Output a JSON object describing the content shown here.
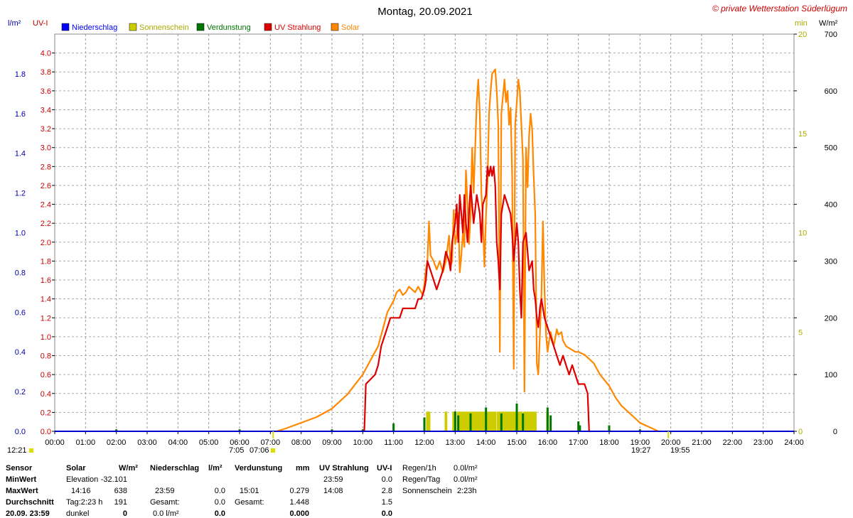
{
  "header": {
    "title": "Montag, 20.09.2021",
    "copyright": "© private Wetterstation Süderlügum",
    "left_units": [
      "l/m²",
      "UV-I"
    ],
    "right_units": [
      "min",
      "W/m²"
    ]
  },
  "legend": [
    {
      "label": "Niederschlag",
      "color": "#0000ff"
    },
    {
      "label": "Sonnenschein",
      "color": "#cccc00"
    },
    {
      "label": "Verdunstung",
      "color": "#007700"
    },
    {
      "label": "UV Strahlung",
      "color": "#dd0000"
    },
    {
      "label": "Solar",
      "color": "#ff8800"
    }
  ],
  "markers": {
    "left_time": "12:21",
    "sunrise": "7:05",
    "sunrise2": "07:06",
    "sunset": "19:27",
    "sunset2": "19:55"
  },
  "chart_data": {
    "type": "line",
    "title": "Montag, 20.09.2021",
    "x_ticks": [
      "00:00",
      "01:00",
      "02:00",
      "03:00",
      "04:00",
      "05:00",
      "06:00",
      "07:00",
      "08:00",
      "09:00",
      "10:00",
      "11:00",
      "12:00",
      "13:00",
      "14:00",
      "15:00",
      "16:00",
      "17:00",
      "18:00",
      "19:00",
      "20:00",
      "21:00",
      "22:00",
      "23:00",
      "24:00"
    ],
    "axes": {
      "rain_lm2": {
        "range": [
          0,
          2.0
        ],
        "ticks": [
          "0.0",
          "0.2",
          "0.4",
          "0.6",
          "0.8",
          "1.0",
          "1.2",
          "1.4",
          "1.6",
          "1.8"
        ],
        "color": "#0000aa",
        "unit": "l/m²"
      },
      "uv_index": {
        "range": [
          0,
          4.2
        ],
        "ticks": [
          "0.0",
          "0.2",
          "0.4",
          "0.6",
          "0.8",
          "1.0",
          "1.2",
          "1.4",
          "1.6",
          "1.8",
          "2.0",
          "2.2",
          "2.4",
          "2.6",
          "2.8",
          "3.0",
          "3.2",
          "3.4",
          "3.6",
          "3.8",
          "4.0"
        ],
        "color": "#cc0000",
        "unit": "UV-I"
      },
      "sun_min": {
        "range": [
          0,
          20
        ],
        "ticks": [
          "0",
          "5",
          "10",
          "15",
          "20"
        ],
        "color": "#aaaa00",
        "unit": "min"
      },
      "solar_wm2": {
        "range": [
          0,
          700
        ],
        "ticks": [
          "0",
          "100",
          "200",
          "300",
          "400",
          "500",
          "600",
          "700"
        ],
        "color": "#000000",
        "unit": "W/m²"
      }
    },
    "grid": true,
    "series": [
      {
        "name": "Solar",
        "axis": "solar_wm2",
        "color": "#ff8800",
        "points": [
          [
            7.2,
            0
          ],
          [
            7.5,
            5
          ],
          [
            8.0,
            15
          ],
          [
            8.5,
            25
          ],
          [
            9.0,
            40
          ],
          [
            9.5,
            65
          ],
          [
            10.0,
            100
          ],
          [
            10.3,
            130
          ],
          [
            10.5,
            150
          ],
          [
            10.7,
            190
          ],
          [
            10.8,
            210
          ],
          [
            11.0,
            230
          ],
          [
            11.1,
            245
          ],
          [
            11.2,
            250
          ],
          [
            11.3,
            240
          ],
          [
            11.4,
            245
          ],
          [
            11.5,
            255
          ],
          [
            11.7,
            245
          ],
          [
            11.8,
            255
          ],
          [
            11.95,
            240
          ],
          [
            12.0,
            260
          ],
          [
            12.05,
            285
          ],
          [
            12.1,
            300
          ],
          [
            12.15,
            370
          ],
          [
            12.2,
            310
          ],
          [
            12.3,
            300
          ],
          [
            12.4,
            285
          ],
          [
            12.5,
            300
          ],
          [
            12.6,
            280
          ],
          [
            12.7,
            300
          ],
          [
            12.8,
            345
          ],
          [
            12.85,
            290
          ],
          [
            12.9,
            300
          ],
          [
            12.95,
            390
          ],
          [
            13.0,
            330
          ],
          [
            13.05,
            345
          ],
          [
            13.1,
            385
          ],
          [
            13.15,
            280
          ],
          [
            13.2,
            310
          ],
          [
            13.25,
            350
          ],
          [
            13.3,
            325
          ],
          [
            13.35,
            460
          ],
          [
            13.4,
            400
          ],
          [
            13.45,
            330
          ],
          [
            13.5,
            380
          ],
          [
            13.55,
            500
          ],
          [
            13.6,
            420
          ],
          [
            13.7,
            580
          ],
          [
            13.75,
            620
          ],
          [
            13.8,
            560
          ],
          [
            13.85,
            420
          ],
          [
            13.9,
            370
          ],
          [
            13.95,
            290
          ],
          [
            14.0,
            380
          ],
          [
            14.05,
            440
          ],
          [
            14.1,
            560
          ],
          [
            14.15,
            600
          ],
          [
            14.2,
            630
          ],
          [
            14.3,
            638
          ],
          [
            14.35,
            600
          ],
          [
            14.4,
            540
          ],
          [
            14.45,
            140
          ],
          [
            14.5,
            560
          ],
          [
            14.6,
            620
          ],
          [
            14.65,
            580
          ],
          [
            14.7,
            600
          ],
          [
            14.75,
            540
          ],
          [
            14.8,
            570
          ],
          [
            14.85,
            450
          ],
          [
            14.9,
            110
          ],
          [
            14.95,
            540
          ],
          [
            15.0,
            580
          ],
          [
            15.05,
            620
          ],
          [
            15.1,
            600
          ],
          [
            15.15,
            540
          ],
          [
            15.2,
            480
          ],
          [
            15.25,
            70
          ],
          [
            15.3,
            500
          ],
          [
            15.35,
            430
          ],
          [
            15.4,
            520
          ],
          [
            15.45,
            560
          ],
          [
            15.5,
            530
          ],
          [
            15.55,
            450
          ],
          [
            15.6,
            380
          ],
          [
            15.65,
            120
          ],
          [
            15.7,
            100
          ],
          [
            15.8,
            240
          ],
          [
            15.85,
            370
          ],
          [
            15.9,
            250
          ],
          [
            15.95,
            170
          ],
          [
            16.0,
            140
          ],
          [
            16.05,
            160
          ],
          [
            16.1,
            175
          ],
          [
            16.2,
            150
          ],
          [
            16.3,
            180
          ],
          [
            16.35,
            170
          ],
          [
            16.45,
            175
          ],
          [
            16.5,
            160
          ],
          [
            16.6,
            150
          ],
          [
            16.75,
            145
          ],
          [
            16.9,
            140
          ],
          [
            17.0,
            140
          ],
          [
            17.2,
            135
          ],
          [
            17.4,
            125
          ],
          [
            17.5,
            120
          ],
          [
            17.7,
            100
          ],
          [
            18.0,
            80
          ],
          [
            18.2,
            60
          ],
          [
            18.4,
            45
          ],
          [
            18.6,
            35
          ],
          [
            18.8,
            25
          ],
          [
            19.0,
            15
          ],
          [
            19.2,
            10
          ],
          [
            19.4,
            5
          ],
          [
            19.6,
            0
          ]
        ]
      },
      {
        "name": "UV Strahlung",
        "axis": "uv_index",
        "color": "#dd0000",
        "points": [
          [
            10.0,
            0.0
          ],
          [
            10.05,
            0.0
          ],
          [
            10.1,
            0.5
          ],
          [
            10.4,
            0.6
          ],
          [
            10.5,
            0.7
          ],
          [
            10.6,
            0.9
          ],
          [
            10.7,
            1.0
          ],
          [
            10.8,
            1.1
          ],
          [
            10.9,
            1.2
          ],
          [
            11.0,
            1.2
          ],
          [
            11.2,
            1.2
          ],
          [
            11.3,
            1.3
          ],
          [
            11.5,
            1.3
          ],
          [
            11.7,
            1.3
          ],
          [
            11.8,
            1.4
          ],
          [
            11.9,
            1.4
          ],
          [
            12.0,
            1.5
          ],
          [
            12.05,
            1.6
          ],
          [
            12.1,
            1.8
          ],
          [
            12.2,
            1.7
          ],
          [
            12.3,
            1.6
          ],
          [
            12.4,
            1.5
          ],
          [
            12.5,
            1.6
          ],
          [
            12.6,
            1.7
          ],
          [
            12.7,
            1.9
          ],
          [
            12.8,
            1.8
          ],
          [
            12.85,
            1.7
          ],
          [
            12.9,
            2.0
          ],
          [
            13.0,
            2.2
          ],
          [
            13.05,
            2.4
          ],
          [
            13.1,
            2.0
          ],
          [
            13.15,
            2.5
          ],
          [
            13.2,
            2.3
          ],
          [
            13.25,
            2.1
          ],
          [
            13.3,
            2.5
          ],
          [
            13.35,
            2.2
          ],
          [
            13.4,
            2.0
          ],
          [
            13.45,
            2.3
          ],
          [
            13.5,
            2.6
          ],
          [
            13.55,
            2.4
          ],
          [
            13.6,
            2.2
          ],
          [
            13.7,
            2.5
          ],
          [
            13.8,
            2.3
          ],
          [
            13.85,
            2.0
          ],
          [
            13.9,
            2.4
          ],
          [
            14.0,
            2.5
          ],
          [
            14.05,
            2.8
          ],
          [
            14.1,
            2.7
          ],
          [
            14.15,
            2.8
          ],
          [
            14.2,
            2.7
          ],
          [
            14.25,
            2.8
          ],
          [
            14.3,
            2.6
          ],
          [
            14.35,
            2.0
          ],
          [
            14.4,
            1.8
          ],
          [
            14.45,
            1.5
          ],
          [
            14.5,
            2.3
          ],
          [
            14.6,
            2.5
          ],
          [
            14.7,
            2.4
          ],
          [
            14.8,
            2.3
          ],
          [
            14.85,
            2.1
          ],
          [
            14.9,
            1.8
          ],
          [
            15.0,
            2.2
          ],
          [
            15.05,
            2.0
          ],
          [
            15.1,
            1.5
          ],
          [
            15.15,
            1.2
          ],
          [
            15.2,
            2.0
          ],
          [
            15.3,
            2.1
          ],
          [
            15.35,
            1.9
          ],
          [
            15.4,
            1.7
          ],
          [
            15.5,
            1.8
          ],
          [
            15.55,
            1.5
          ],
          [
            15.6,
            1.4
          ],
          [
            15.65,
            1.2
          ],
          [
            15.7,
            1.1
          ],
          [
            15.75,
            1.3
          ],
          [
            15.8,
            1.4
          ],
          [
            15.9,
            1.2
          ],
          [
            16.0,
            1.1
          ],
          [
            16.1,
            1.0
          ],
          [
            16.2,
            0.9
          ],
          [
            16.3,
            0.8
          ],
          [
            16.4,
            0.7
          ],
          [
            16.5,
            0.8
          ],
          [
            16.6,
            0.7
          ],
          [
            16.7,
            0.6
          ],
          [
            16.8,
            0.7
          ],
          [
            16.9,
            0.6
          ],
          [
            17.0,
            0.5
          ],
          [
            17.2,
            0.5
          ],
          [
            17.3,
            0.4
          ],
          [
            17.35,
            0.0
          ],
          [
            17.4,
            0.0
          ]
        ]
      },
      {
        "name": "Sonnenschein",
        "axis": "sun_min",
        "color": "#cccc00",
        "bars": [
          [
            12.05,
            12.2,
            1
          ],
          [
            12.65,
            12.75,
            1
          ],
          [
            12.9,
            13.05,
            1
          ],
          [
            13.05,
            14.35,
            1
          ],
          [
            14.35,
            15.2,
            1
          ],
          [
            15.2,
            15.65,
            1
          ],
          [
            15.95,
            16.05,
            1
          ]
        ]
      },
      {
        "name": "Verdunstung",
        "axis": "rain_lm2",
        "color": "#007700",
        "spikes": [
          [
            2.0,
            0.01
          ],
          [
            6.0,
            0.01
          ],
          [
            9.0,
            0.01
          ],
          [
            10.0,
            0.01
          ],
          [
            11.0,
            0.04
          ],
          [
            12.0,
            0.07
          ],
          [
            13.0,
            0.1
          ],
          [
            13.1,
            0.08
          ],
          [
            13.5,
            0.09
          ],
          [
            14.0,
            0.12
          ],
          [
            14.5,
            0.09
          ],
          [
            15.0,
            0.14
          ],
          [
            15.2,
            0.09
          ],
          [
            16.0,
            0.12
          ],
          [
            16.1,
            0.08
          ],
          [
            17.0,
            0.05
          ],
          [
            17.05,
            0.03
          ],
          [
            18.0,
            0.03
          ],
          [
            19.0,
            0.01
          ]
        ]
      }
    ]
  },
  "stats": {
    "col1": {
      "header": "Sensor",
      "rows": [
        "MinWert",
        "MaxWert",
        "Durchschnitt",
        "20.09. 23:59"
      ]
    },
    "col2": {
      "header": "Solar",
      "unit": "W/m²",
      "rows": [
        [
          "Elevation",
          "-32.101"
        ],
        [
          "14:16",
          "638"
        ],
        [
          "Tag:2:23 h",
          "191"
        ],
        [
          "dunkel",
          "0"
        ]
      ]
    },
    "col3": {
      "header": "Niederschlag",
      "unit": "l/m²",
      "rows": [
        [
          "",
          ""
        ],
        [
          "23:59",
          "0.0"
        ],
        [
          "Gesamt:",
          "0.0"
        ],
        [
          "0.0 l/m²",
          "0.0"
        ]
      ]
    },
    "col4": {
      "header": "Verdunstung",
      "unit": "mm",
      "rows": [
        [
          "",
          ""
        ],
        [
          "15:01",
          "0.279"
        ],
        [
          "Gesamt:",
          "1.448"
        ],
        [
          "",
          "0.000"
        ]
      ]
    },
    "col5": {
      "header": "UV Strahlung",
      "unit": "UV-I",
      "rows": [
        [
          "23:59",
          "0.0"
        ],
        [
          "14:08",
          "2.8"
        ],
        [
          "",
          "1.5"
        ],
        [
          "",
          "0.0"
        ]
      ]
    },
    "col6": {
      "rows": [
        [
          "Regen/1h",
          "0.0l/m²"
        ],
        [
          "Regen/Tag",
          "0.0l/m²"
        ],
        [
          "Sonnenschein",
          "2:23h"
        ]
      ]
    }
  }
}
